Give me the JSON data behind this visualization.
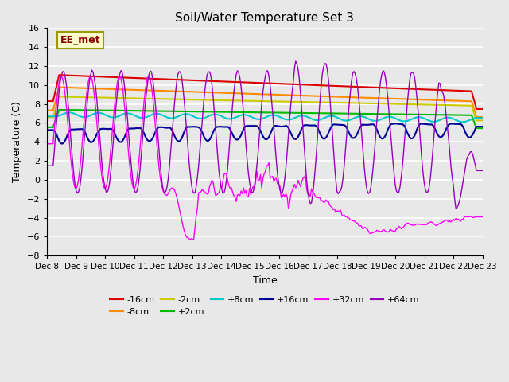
{
  "title": "Soil/Water Temperature Set 3",
  "xlabel": "Time",
  "ylabel": "Temperature (C)",
  "ylim": [
    -8,
    16
  ],
  "annotation": "EE_met",
  "series_labels": [
    "-16cm",
    "-8cm",
    "-2cm",
    "+2cm",
    "+8cm",
    "+16cm",
    "+32cm",
    "+64cm"
  ],
  "series_colors": [
    "#dd0000",
    "#ff8c00",
    "#cccc00",
    "#00bb00",
    "#00cccc",
    "#000099",
    "#ff00ff",
    "#9900bb"
  ],
  "xtick_labels": [
    "Dec 8",
    "Dec 9",
    "Dec 10",
    "Dec 11",
    "Dec 12",
    "Dec 13",
    "Dec 14",
    "Dec 15",
    "Dec 16",
    "Dec 17",
    "Dec 18",
    "Dec 19",
    "Dec 20",
    "Dec 21",
    "Dec 22",
    "Dec 23"
  ],
  "background_color": "#e8e8e8",
  "grid_color": "#ffffff",
  "yticks": [
    -8,
    -6,
    -4,
    -2,
    0,
    2,
    4,
    6,
    8,
    10,
    12,
    14,
    16
  ]
}
